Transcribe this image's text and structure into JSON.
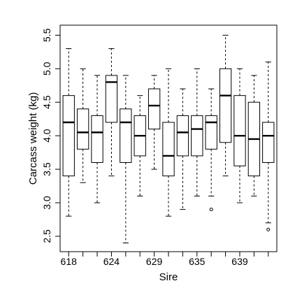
{
  "chart_data": {
    "type": "boxplot",
    "title": "",
    "xlabel": "Sire",
    "ylabel": "Carcass weight (kg)",
    "ylim": [
      2.27,
      5.65
    ],
    "yticks": [
      "2.5",
      "3.0",
      "3.5",
      "4.0",
      "4.5",
      "5.0",
      "5.5"
    ],
    "ytick_values": [
      2.5,
      3.0,
      3.5,
      4.0,
      4.5,
      5.0,
      5.5
    ],
    "xtick_labels": [
      "618",
      "624",
      "629",
      "635",
      "639"
    ],
    "xtick_positions": [
      1,
      4,
      7,
      10,
      13
    ],
    "grid": false,
    "boxes": [
      {
        "position": 1,
        "whisker_low": 2.8,
        "q1": 3.4,
        "median": 4.2,
        "q3": 4.6,
        "whisker_high": 5.3,
        "outliers": []
      },
      {
        "position": 2,
        "whisker_low": 3.3,
        "q1": 3.8,
        "median": 4.05,
        "q3": 4.4,
        "whisker_high": 5.0,
        "outliers": []
      },
      {
        "position": 3,
        "whisker_low": 3.0,
        "q1": 3.6,
        "median": 4.05,
        "q3": 4.3,
        "whisker_high": 4.9,
        "outliers": []
      },
      {
        "position": 4,
        "whisker_low": 3.4,
        "q1": 4.2,
        "median": 4.8,
        "q3": 4.9,
        "whisker_high": 5.3,
        "outliers": []
      },
      {
        "position": 5,
        "whisker_low": 2.4,
        "q1": 3.6,
        "median": 4.2,
        "q3": 4.4,
        "whisker_high": 4.9,
        "outliers": []
      },
      {
        "position": 6,
        "whisker_low": 3.1,
        "q1": 3.7,
        "median": 4.0,
        "q3": 4.3,
        "whisker_high": 4.6,
        "outliers": []
      },
      {
        "position": 7,
        "whisker_low": 3.5,
        "q1": 4.1,
        "median": 4.45,
        "q3": 4.7,
        "whisker_high": 4.9,
        "outliers": []
      },
      {
        "position": 8,
        "whisker_low": 2.8,
        "q1": 3.4,
        "median": 3.7,
        "q3": 4.2,
        "whisker_high": 5.0,
        "outliers": []
      },
      {
        "position": 9,
        "whisker_low": 2.9,
        "q1": 3.7,
        "median": 4.05,
        "q3": 4.3,
        "whisker_high": 4.7,
        "outliers": []
      },
      {
        "position": 10,
        "whisker_low": 3.1,
        "q1": 3.7,
        "median": 4.1,
        "q3": 4.3,
        "whisker_high": 5.0,
        "outliers": []
      },
      {
        "position": 11,
        "whisker_low": 3.1,
        "q1": 3.8,
        "median": 4.2,
        "q3": 4.3,
        "whisker_high": 4.7,
        "outliers": [
          2.9
        ]
      },
      {
        "position": 12,
        "whisker_low": 3.4,
        "q1": 3.9,
        "median": 4.6,
        "q3": 5.0,
        "whisker_high": 5.5,
        "outliers": []
      },
      {
        "position": 13,
        "whisker_low": 3.0,
        "q1": 3.55,
        "median": 4.0,
        "q3": 4.6,
        "whisker_high": 5.0,
        "outliers": []
      },
      {
        "position": 14,
        "whisker_low": 3.1,
        "q1": 3.4,
        "median": 3.95,
        "q3": 4.5,
        "whisker_high": 4.9,
        "outliers": []
      },
      {
        "position": 15,
        "whisker_low": 2.7,
        "q1": 3.6,
        "median": 4.0,
        "q3": 4.2,
        "whisker_high": 5.1,
        "outliers": [
          2.6
        ]
      }
    ]
  }
}
